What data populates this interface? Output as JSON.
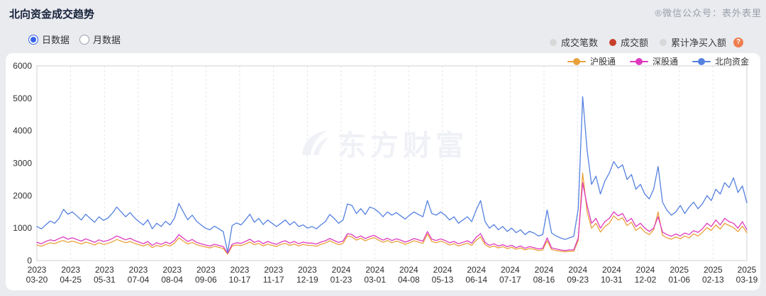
{
  "page": {
    "title": "北向资金成交趋势",
    "watermark_credit": "®微信公众号：表外表里"
  },
  "controls": {
    "radios": [
      {
        "label": "日数据",
        "selected": true
      },
      {
        "label": "月数据",
        "selected": false
      }
    ]
  },
  "indicator_legend": {
    "items": [
      {
        "label": "成交笔数",
        "dot_color": "#d8d8d8"
      },
      {
        "label": "成交额",
        "dot_color": "#c9402a"
      },
      {
        "label": "累计净买入额",
        "dot_color": "#d8d8d8"
      }
    ],
    "help_badge": "?",
    "help_color": "#ef7e4f"
  },
  "chart_data": {
    "type": "line",
    "title": "北向资金成交趋势",
    "xlabel": "",
    "ylabel": "",
    "ylim": [
      0,
      6000
    ],
    "yticks": [
      0,
      1000,
      2000,
      3000,
      4000,
      5000,
      6000
    ],
    "grid": "vertical-dashed",
    "legend_position": "top-right",
    "watermark": "东方财富",
    "x_tick_labels": [
      [
        "2023",
        "03-20"
      ],
      [
        "2023",
        "04-25"
      ],
      [
        "2023",
        "05-31"
      ],
      [
        "2023",
        "07-04"
      ],
      [
        "2023",
        "08-04"
      ],
      [
        "2023",
        "09-06"
      ],
      [
        "2023",
        "10-17"
      ],
      [
        "2023",
        "11-17"
      ],
      [
        "2023",
        "12-19"
      ],
      [
        "2024",
        "01-23"
      ],
      [
        "2024",
        "03-01"
      ],
      [
        "2024",
        "04-08"
      ],
      [
        "2024",
        "05-13"
      ],
      [
        "2024",
        "06-14"
      ],
      [
        "2024",
        "07-17"
      ],
      [
        "2024",
        "08-16"
      ],
      [
        "2024",
        "09-23"
      ],
      [
        "2024",
        "10-31"
      ],
      [
        "2024",
        "12-02"
      ],
      [
        "2025",
        "01-06"
      ],
      [
        "2025",
        "02-13"
      ],
      [
        "2025",
        "03-19"
      ]
    ],
    "series": [
      {
        "name": "沪股通",
        "color": "#e9a23b",
        "values": [
          480,
          440,
          500,
          550,
          520,
          580,
          620,
          560,
          600,
          560,
          510,
          570,
          530,
          480,
          550,
          500,
          530,
          580,
          650,
          600,
          550,
          590,
          530,
          490,
          450,
          510,
          400,
          470,
          430,
          490,
          450,
          540,
          700,
          600,
          510,
          560,
          490,
          450,
          420,
          390,
          440,
          410,
          370,
          200,
          450,
          480,
          460,
          510,
          570,
          490,
          530,
          450,
          510,
          470,
          430,
          500,
          530,
          470,
          510,
          450,
          500,
          470,
          470,
          440,
          500,
          540,
          610,
          550,
          490,
          530,
          760,
          730,
          630,
          690,
          610,
          670,
          710,
          630,
          560,
          620,
          550,
          600,
          560,
          500,
          550,
          610,
          570,
          530,
          820,
          590,
          550,
          600,
          550,
          480,
          520,
          450,
          490,
          540,
          470,
          630,
          730,
          490,
          410,
          450,
          390,
          430,
          370,
          410,
          350,
          390,
          330,
          370,
          350,
          310,
          330,
          610,
          340,
          310,
          290,
          270,
          290,
          290,
          620,
          2700,
          1500,
          1000,
          1150,
          880,
          1050,
          1150,
          1380,
          1250,
          1320,
          1080,
          1180,
          930,
          1030,
          880,
          800,
          950,
          1500,
          780,
          700,
          660,
          730,
          670,
          760,
          700,
          820,
          760,
          870,
          1020,
          930,
          1100,
          970,
          1150,
          1080,
          1020,
          890,
          1060,
          860
        ]
      },
      {
        "name": "深股通",
        "color": "#de39be",
        "values": [
          560,
          520,
          590,
          640,
          610,
          680,
          730,
          660,
          700,
          650,
          600,
          670,
          620,
          560,
          640,
          590,
          620,
          680,
          760,
          700,
          640,
          690,
          620,
          570,
          520,
          590,
          470,
          550,
          500,
          570,
          520,
          620,
          800,
          690,
          590,
          650,
          560,
          520,
          480,
          450,
          500,
          470,
          430,
          230,
          500,
          550,
          530,
          590,
          660,
          560,
          610,
          520,
          590,
          540,
          500,
          570,
          610,
          540,
          590,
          520,
          570,
          540,
          540,
          510,
          570,
          610,
          680,
          620,
          560,
          600,
          830,
          800,
          700,
          760,
          680,
          740,
          780,
          700,
          630,
          690,
          620,
          670,
          630,
          570,
          620,
          680,
          640,
          600,
          895,
          660,
          620,
          670,
          620,
          550,
          590,
          520,
          560,
          610,
          540,
          720,
          830,
          560,
          470,
          520,
          450,
          490,
          430,
          470,
          400,
          450,
          380,
          430,
          400,
          360,
          380,
          700,
          390,
          360,
          330,
          310,
          330,
          330,
          700,
          2400,
          1700,
          1150,
          1300,
          1000,
          1200,
          1300,
          1500,
          1380,
          1450,
          1200,
          1300,
          1050,
          1150,
          1000,
          900,
          1000,
          1350,
          880,
          800,
          750,
          820,
          760,
          850,
          800,
          920,
          870,
          980,
          1150,
          1050,
          1250,
          1100,
          1300,
          1200,
          1150,
          1000,
          1200,
          950
        ]
      },
      {
        "name": "北向资金",
        "color": "#5581e0",
        "values": [
          1050,
          980,
          1100,
          1220,
          1150,
          1300,
          1580,
          1430,
          1500,
          1380,
          1250,
          1430,
          1300,
          1180,
          1350,
          1240,
          1310,
          1460,
          1650,
          1500,
          1350,
          1480,
          1320,
          1200,
          1100,
          1260,
          980,
          1150,
          1050,
          1210,
          1100,
          1300,
          1760,
          1500,
          1260,
          1400,
          1210,
          1100,
          1000,
          950,
          1060,
          980,
          890,
          260,
          1080,
          1160,
          1100,
          1250,
          1430,
          1180,
          1300,
          1110,
          1250,
          1150,
          1050,
          1150,
          1250,
          1100,
          1200,
          1050,
          1100,
          1000,
          1050,
          980,
          1100,
          1200,
          1420,
          1300,
          1150,
          1250,
          1745,
          1700,
          1450,
          1600,
          1420,
          1650,
          1600,
          1500,
          1350,
          1500,
          1400,
          1480,
          1380,
          1280,
          1400,
          1500,
          1420,
          1350,
          1850,
          1450,
          1400,
          1500,
          1400,
          1250,
          1350,
          1150,
          1250,
          1350,
          1200,
          1560,
          1850,
          1200,
          1000,
          1110,
          950,
          1050,
          900,
          1000,
          860,
          950,
          800,
          900,
          850,
          760,
          800,
          1560,
          850,
          760,
          700,
          650,
          700,
          750,
          1600,
          5050,
          3400,
          2350,
          2600,
          2050,
          2450,
          2700,
          3050,
          2850,
          2950,
          2500,
          2650,
          2200,
          2350,
          2050,
          1900,
          2200,
          2900,
          1800,
          1550,
          1400,
          1500,
          1700,
          1450,
          1650,
          1800,
          1600,
          1750,
          2000,
          1850,
          2200,
          2050,
          2400,
          2250,
          2550,
          2100,
          2300,
          1780
        ]
      }
    ]
  }
}
